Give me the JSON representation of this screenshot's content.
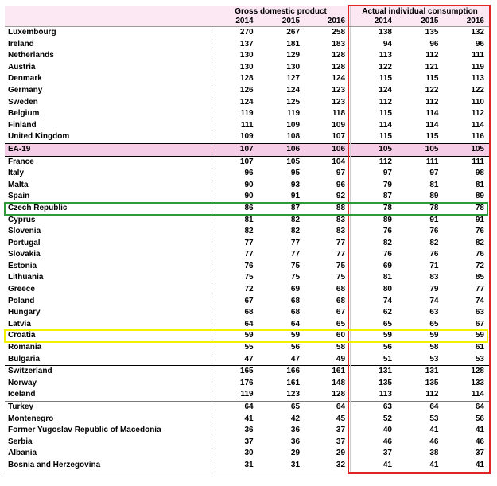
{
  "header": {
    "gdp_label": "Gross domestic product",
    "aic_label": "Actual individual consumption",
    "years": [
      "2014",
      "2015",
      "2016",
      "2014",
      "2015",
      "2016"
    ]
  },
  "rows": [
    {
      "name": "Luxembourg",
      "v": [
        "270",
        "267",
        "258",
        "138",
        "135",
        "132"
      ]
    },
    {
      "name": "Ireland",
      "v": [
        "137",
        "181",
        "183",
        "94",
        "96",
        "96"
      ]
    },
    {
      "name": "Netherlands",
      "v": [
        "130",
        "129",
        "128",
        "113",
        "112",
        "111"
      ]
    },
    {
      "name": "Austria",
      "v": [
        "130",
        "130",
        "128",
        "122",
        "121",
        "119"
      ]
    },
    {
      "name": "Denmark",
      "v": [
        "128",
        "127",
        "124",
        "115",
        "115",
        "113"
      ]
    },
    {
      "name": "Germany",
      "v": [
        "126",
        "124",
        "123",
        "124",
        "122",
        "122"
      ]
    },
    {
      "name": "Sweden",
      "v": [
        "124",
        "125",
        "123",
        "112",
        "112",
        "110"
      ]
    },
    {
      "name": "Belgium",
      "v": [
        "119",
        "119",
        "118",
        "115",
        "114",
        "112"
      ]
    },
    {
      "name": "Finland",
      "v": [
        "111",
        "109",
        "109",
        "114",
        "114",
        "114"
      ]
    },
    {
      "name": "United Kingdom",
      "v": [
        "109",
        "108",
        "107",
        "115",
        "115",
        "116"
      ]
    },
    {
      "name": "EA-19",
      "v": [
        "107",
        "106",
        "106",
        "105",
        "105",
        "105"
      ]
    },
    {
      "name": "France",
      "v": [
        "107",
        "105",
        "104",
        "112",
        "111",
        "111"
      ]
    },
    {
      "name": "Italy",
      "v": [
        "96",
        "95",
        "97",
        "97",
        "97",
        "98"
      ]
    },
    {
      "name": "Malta",
      "v": [
        "90",
        "93",
        "96",
        "79",
        "81",
        "81"
      ]
    },
    {
      "name": "Spain",
      "v": [
        "90",
        "91",
        "92",
        "87",
        "89",
        "89"
      ]
    },
    {
      "name": "Czech Republic",
      "v": [
        "86",
        "87",
        "88",
        "78",
        "78",
        "78"
      ]
    },
    {
      "name": "Cyprus",
      "v": [
        "81",
        "82",
        "83",
        "89",
        "91",
        "91"
      ]
    },
    {
      "name": "Slovenia",
      "v": [
        "82",
        "82",
        "83",
        "76",
        "76",
        "76"
      ]
    },
    {
      "name": "Portugal",
      "v": [
        "77",
        "77",
        "77",
        "82",
        "82",
        "82"
      ]
    },
    {
      "name": "Slovakia",
      "v": [
        "77",
        "77",
        "77",
        "76",
        "76",
        "76"
      ]
    },
    {
      "name": "Estonia",
      "v": [
        "76",
        "75",
        "75",
        "69",
        "71",
        "72"
      ]
    },
    {
      "name": "Lithuania",
      "v": [
        "75",
        "75",
        "75",
        "81",
        "83",
        "85"
      ]
    },
    {
      "name": "Greece",
      "v": [
        "72",
        "69",
        "68",
        "80",
        "79",
        "77"
      ]
    },
    {
      "name": "Poland",
      "v": [
        "67",
        "68",
        "68",
        "74",
        "74",
        "74"
      ]
    },
    {
      "name": "Hungary",
      "v": [
        "68",
        "68",
        "67",
        "62",
        "63",
        "63"
      ]
    },
    {
      "name": "Latvia",
      "v": [
        "64",
        "64",
        "65",
        "65",
        "65",
        "67"
      ]
    },
    {
      "name": "Croatia",
      "v": [
        "59",
        "59",
        "60",
        "59",
        "59",
        "59"
      ]
    },
    {
      "name": "Romania",
      "v": [
        "55",
        "56",
        "58",
        "56",
        "58",
        "61"
      ]
    },
    {
      "name": "Bulgaria",
      "v": [
        "47",
        "47",
        "49",
        "51",
        "53",
        "53"
      ]
    },
    {
      "name": "Switzerland",
      "v": [
        "165",
        "166",
        "161",
        "131",
        "131",
        "128"
      ]
    },
    {
      "name": "Norway",
      "v": [
        "176",
        "161",
        "148",
        "135",
        "135",
        "133"
      ]
    },
    {
      "name": "Iceland",
      "v": [
        "119",
        "123",
        "128",
        "113",
        "112",
        "114"
      ]
    },
    {
      "name": "Turkey",
      "v": [
        "64",
        "65",
        "64",
        "63",
        "64",
        "64"
      ]
    },
    {
      "name": "Montenegro",
      "v": [
        "41",
        "42",
        "45",
        "52",
        "53",
        "56"
      ]
    },
    {
      "name": "Former Yugoslav Republic of Macedonia",
      "v": [
        "36",
        "36",
        "37",
        "40",
        "41",
        "41"
      ]
    },
    {
      "name": "Serbia",
      "v": [
        "37",
        "36",
        "37",
        "46",
        "46",
        "46"
      ]
    },
    {
      "name": "Albania",
      "v": [
        "30",
        "29",
        "29",
        "37",
        "38",
        "37"
      ]
    },
    {
      "name": "Bosnia and Herzegovina",
      "v": [
        "31",
        "31",
        "32",
        "41",
        "41",
        "41"
      ]
    }
  ],
  "highlights": {
    "red_box_color": "#e02424",
    "green_box_color": "#2e9a3a",
    "yellow_box_color": "#f2f200",
    "ea_row_color": "#f5cde6"
  }
}
